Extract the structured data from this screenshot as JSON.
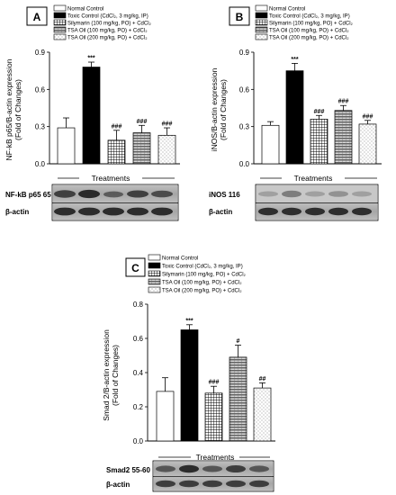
{
  "legend_items": [
    {
      "label": "Normal Control",
      "pattern": "white"
    },
    {
      "label": "Toxic Control (CdCl₂, 3 mg/kg, IP)",
      "pattern": "black"
    },
    {
      "label": "Silymarin (100 mg/kg, PO) + CdCl₂",
      "pattern": "grid"
    },
    {
      "label": "TSA Oil (100 mg/kg, PO) + CdCl₂",
      "pattern": "stripes"
    },
    {
      "label": "TSA Oil (200 mg/kg, PO) + CdCl₂",
      "pattern": "dots"
    }
  ],
  "chart_data": [
    {
      "panel": "A",
      "type": "bar",
      "categories": [
        "Normal Control",
        "Toxic Control (CdCl₂, 3 mg/kg, IP)",
        "Silymarin (100 mg/kg, PO) + CdCl₂",
        "TSA Oil (100 mg/kg, PO) + CdCl₂",
        "TSA Oil (200 mg/kg, PO) + CdCl₂"
      ],
      "values": [
        0.29,
        0.78,
        0.19,
        0.25,
        0.23
      ],
      "errors": [
        0.08,
        0.04,
        0.08,
        0.06,
        0.06
      ],
      "significance": [
        "",
        "***",
        "###",
        "###",
        "###"
      ],
      "ylabel_line1": "NF-kB p65/B-actin expression",
      "ylabel_line2": "(Fold of Changes)",
      "xlabel": "Treatments",
      "ylim": [
        0,
        0.9
      ],
      "yticks": [
        "0.0",
        "0.3",
        "0.6",
        "0.9"
      ],
      "blot_labels": [
        "NF-kB p65 65",
        "β-actin"
      ]
    },
    {
      "panel": "B",
      "type": "bar",
      "categories": [
        "Normal Control",
        "Toxic Control (CdCl₂, 3 mg/kg, IP)",
        "Silymarin (100 mg/kg, PO) + CdCl₂",
        "TSA Oil (100 mg/kg, PO) + CdCl₂",
        "TSA Oil (200 mg/kg, PO) + CdCl₂"
      ],
      "values": [
        0.31,
        0.75,
        0.36,
        0.43,
        0.32
      ],
      "errors": [
        0.03,
        0.06,
        0.03,
        0.04,
        0.03
      ],
      "significance": [
        "",
        "***",
        "###",
        "###",
        "###"
      ],
      "ylabel_line1": "iNOS/B-actin expression",
      "ylabel_line2": "(Fold of Changes)",
      "xlabel": "Treatments",
      "ylim": [
        0,
        0.9
      ],
      "yticks": [
        "0.0",
        "0.3",
        "0.6",
        "0.9"
      ],
      "blot_labels": [
        "iNOS 116",
        "β-actin"
      ]
    },
    {
      "panel": "C",
      "type": "bar",
      "categories": [
        "Normal Control",
        "Toxic Control (CdCl₂, 3 mg/kg, IP)",
        "Silymarin (100 mg/kg, PO) + CdCl₂",
        "TSA Oil (100 mg/kg, PO) + CdCl₂",
        "TSA Oil (200 mg/kg, PO) + CdCl₂"
      ],
      "values": [
        0.29,
        0.65,
        0.28,
        0.49,
        0.31
      ],
      "errors": [
        0.08,
        0.03,
        0.04,
        0.07,
        0.03
      ],
      "significance": [
        "",
        "***",
        "###",
        "#",
        "##"
      ],
      "ylabel_line1": "Smad 2/B-actin expression",
      "ylabel_line2": "(Fold of Changes)",
      "xlabel": "Treatments",
      "ylim": [
        0,
        0.8
      ],
      "yticks": [
        "0.0",
        "0.2",
        "0.4",
        "0.6",
        "0.8"
      ],
      "blot_labels": [
        "Smad2  55-60",
        "β-actin"
      ]
    }
  ]
}
